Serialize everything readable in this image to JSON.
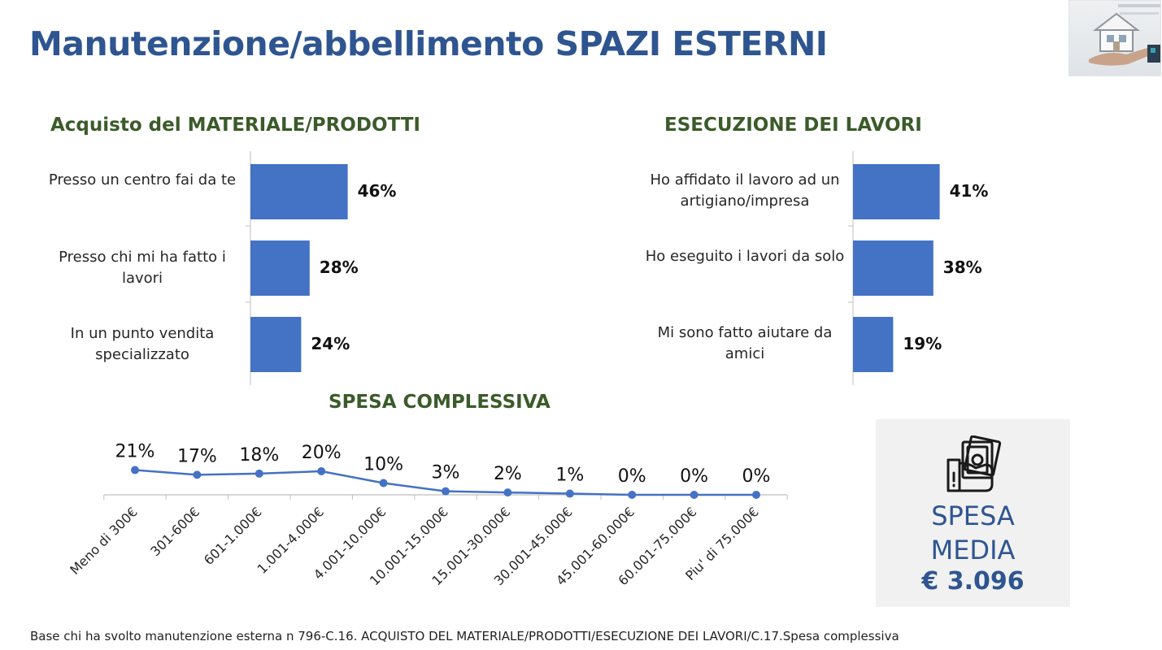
{
  "page": {
    "title": "Manutenzione/abbellimento SPAZI ESTERNI",
    "footnote": "Base chi ha svolto manutenzione esterna n 796-C.16. ACQUISTO DEL MATERIALE/PRODOTTI/ESECUZIONE DEI LAVORI/C.17.Spesa complessiva"
  },
  "logo": {
    "icon": "house-in-hand-icon"
  },
  "spesa_box": {
    "icon": "money-in-hand-icon",
    "line1": "SPESA",
    "line2": "MEDIA",
    "value": "€ 3.096"
  },
  "colors": {
    "bar": "#4472c4",
    "line": "#4472c4",
    "title": "#2e5590",
    "section_title": "#3b5b2a",
    "axis": "#bfbfbf"
  },
  "chart_data": [
    {
      "type": "bar",
      "orientation": "horizontal",
      "title": "Acquisto del MATERIALE/PRODOTTI",
      "categories": [
        "Presso un centro fai da te",
        "Presso chi mi ha fatto i lavori",
        "In un punto vendita specializzato"
      ],
      "values": [
        46,
        28,
        24
      ],
      "value_labels": [
        "46%",
        "28%",
        "24%"
      ],
      "unit": "%",
      "xlim": [
        0,
        100
      ]
    },
    {
      "type": "bar",
      "orientation": "horizontal",
      "title": "ESECUZIONE DEI LAVORI",
      "categories": [
        "Ho affidato il lavoro ad un artigiano/impresa",
        "Ho eseguito i lavori  da solo",
        "Mi sono fatto aiutare da amici"
      ],
      "values": [
        41,
        38,
        19
      ],
      "value_labels": [
        "41%",
        "38%",
        "19%"
      ],
      "unit": "%",
      "xlim": [
        0,
        100
      ]
    },
    {
      "type": "line",
      "title": "SPESA COMPLESSIVA",
      "categories": [
        "Meno di 300€",
        "301-600€",
        "601-1.000€",
        "1.001-4.000€",
        "4.001-10.000€",
        "10.001-15.000€",
        "15.001-30.000€",
        "30.001-45.000€",
        "45.001-60.000€",
        "60.001-75.000€",
        "Piu' di 75.000€"
      ],
      "values": [
        21,
        17,
        18,
        20,
        10,
        3,
        2,
        1,
        0,
        0,
        0
      ],
      "value_labels": [
        "21%",
        "17%",
        "18%",
        "20%",
        "10%",
        "3%",
        "2%",
        "1%",
        "0%",
        "0%",
        "0%"
      ],
      "unit": "%",
      "ylim": [
        0,
        100
      ]
    }
  ]
}
